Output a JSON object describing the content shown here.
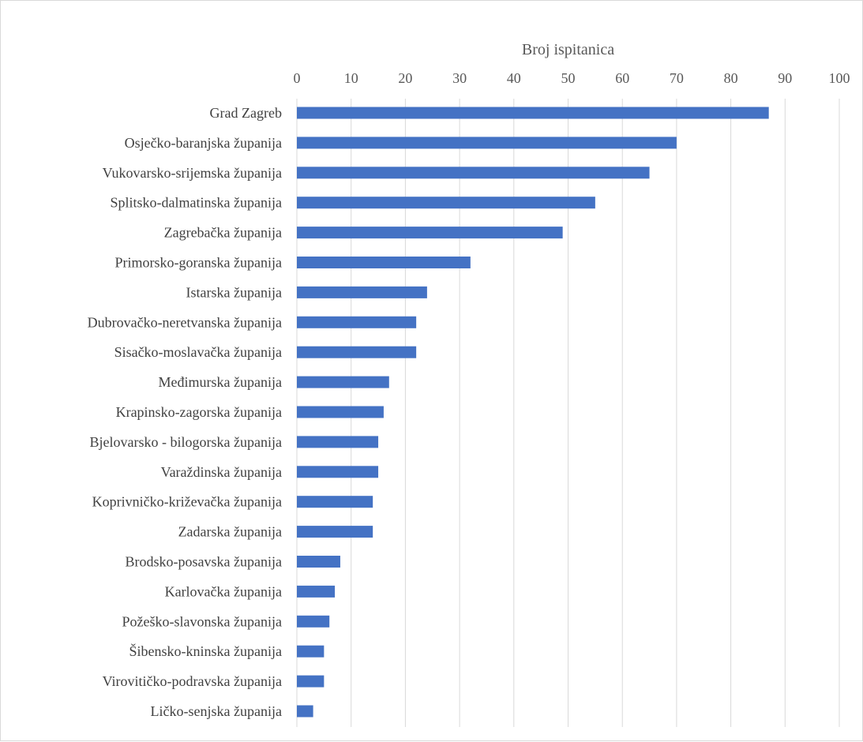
{
  "chart_data": {
    "type": "bar",
    "orientation": "horizontal",
    "xlabel": "Broj ispitanica",
    "xlabel_position": "top",
    "ylabel": "",
    "xlim": [
      0,
      100
    ],
    "x_ticks": [
      0,
      10,
      20,
      30,
      40,
      50,
      60,
      70,
      80,
      90,
      100
    ],
    "grid": true,
    "legend": false,
    "bar_color": "#4472c4",
    "categories": [
      "Grad Zagreb",
      "Osječko-baranjska županija",
      "Vukovarsko-srijemska županija",
      "Splitsko-dalmatinska županija",
      "Zagrebačka županija",
      "Primorsko-goranska županija",
      "Istarska županija",
      "Dubrovačko-neretvanska županija",
      "Sisačko-moslavačka županija",
      "Međimurska županija",
      "Krapinsko-zagorska županija",
      "Bjelovarsko - bilogorska županija",
      "Varaždinska županija",
      "Koprivničko-križevačka županija",
      "Zadarska županija",
      "Brodsko-posavska županija",
      "Karlovačka županija",
      "Požeško-slavonska županija",
      "Šibensko-kninska županija",
      "Virovitičko-podravska županija",
      "Ličko-senjska županija"
    ],
    "values": [
      87,
      70,
      65,
      55,
      49,
      32,
      24,
      22,
      22,
      17,
      16,
      15,
      15,
      14,
      14,
      8,
      7,
      6,
      5,
      5,
      3
    ]
  }
}
